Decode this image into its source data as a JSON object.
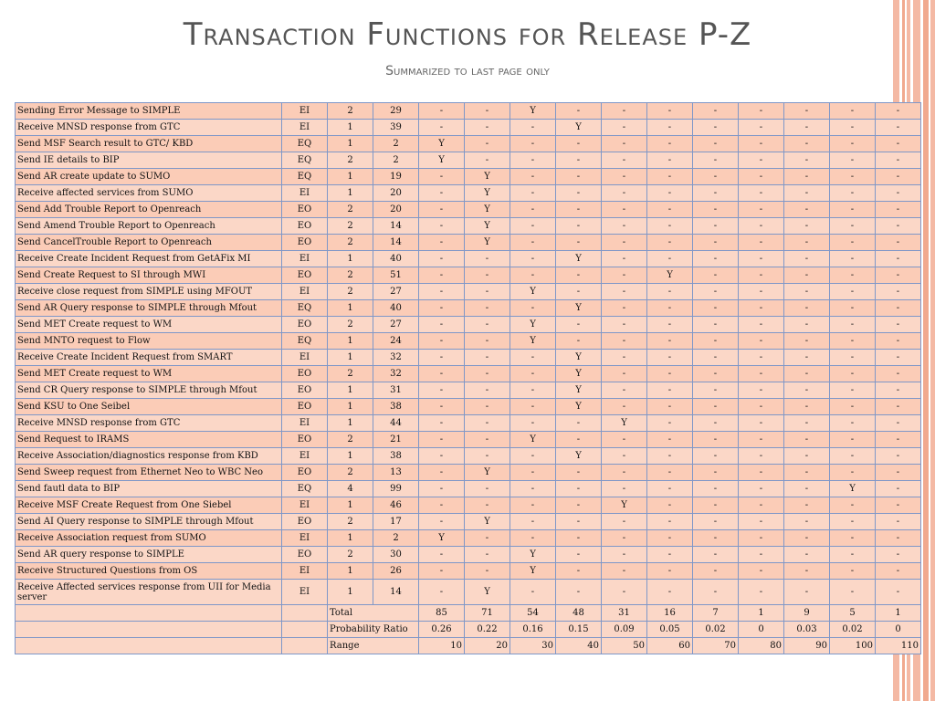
{
  "title": "Transaction Functions for Release P-Z",
  "subtitle": "Summarized to last page only",
  "rows": [
    {
      "name": "Sending Error Message to SIMPLE",
      "type": "EI",
      "ftr": "2",
      "det": "29",
      "cols": [
        "-",
        "-",
        "Y",
        "-",
        "-",
        "-",
        "-",
        "-",
        "-",
        "-",
        "-"
      ]
    },
    {
      "name": "Receive MNSD response from GTC",
      "type": "EI",
      "ftr": "1",
      "det": "39",
      "cols": [
        "-",
        "-",
        "-",
        "Y",
        "-",
        "-",
        "-",
        "-",
        "-",
        "-",
        "-"
      ]
    },
    {
      "name": "Send MSF Search result to GTC/ KBD",
      "type": "EQ",
      "ftr": "1",
      "det": "2",
      "cols": [
        "Y",
        "-",
        "-",
        "-",
        "-",
        "-",
        "-",
        "-",
        "-",
        "-",
        "-"
      ]
    },
    {
      "name": "Send IE details to BIP",
      "type": "EQ",
      "ftr": "2",
      "det": "2",
      "cols": [
        "Y",
        "-",
        "-",
        "-",
        "-",
        "-",
        "-",
        "-",
        "-",
        "-",
        "-"
      ]
    },
    {
      "name": "Send AR create update to SUMO",
      "type": "EQ",
      "ftr": "1",
      "det": "19",
      "cols": [
        "-",
        "Y",
        "-",
        "-",
        "-",
        "-",
        "-",
        "-",
        "-",
        "-",
        "-"
      ]
    },
    {
      "name": "Receive affected services from SUMO",
      "type": "EI",
      "ftr": "1",
      "det": "20",
      "cols": [
        "-",
        "Y",
        "-",
        "-",
        "-",
        "-",
        "-",
        "-",
        "-",
        "-",
        "-"
      ]
    },
    {
      "name": "Send Add Trouble Report to Openreach",
      "type": "EO",
      "ftr": "2",
      "det": "20",
      "cols": [
        "-",
        "Y",
        "-",
        "-",
        "-",
        "-",
        "-",
        "-",
        "-",
        "-",
        "-"
      ]
    },
    {
      "name": "Send Amend Trouble Report to Openreach",
      "type": "EO",
      "ftr": "2",
      "det": "14",
      "cols": [
        "-",
        "Y",
        "-",
        "-",
        "-",
        "-",
        "-",
        "-",
        "-",
        "-",
        "-"
      ]
    },
    {
      "name": "Send CancelTrouble Report to Openreach",
      "type": "EO",
      "ftr": "2",
      "det": "14",
      "cols": [
        "-",
        "Y",
        "-",
        "-",
        "-",
        "-",
        "-",
        "-",
        "-",
        "-",
        "-"
      ]
    },
    {
      "name": "Receive Create Incident Request from GetAFix MI",
      "type": "EI",
      "ftr": "1",
      "det": "40",
      "cols": [
        "-",
        "-",
        "-",
        "Y",
        "-",
        "-",
        "-",
        "-",
        "-",
        "-",
        "-"
      ]
    },
    {
      "name": "Send Create Request to SI through MWI",
      "type": "EO",
      "ftr": "2",
      "det": "51",
      "cols": [
        "-",
        "-",
        "-",
        "-",
        "-",
        "Y",
        "-",
        "-",
        "-",
        "-",
        "-"
      ]
    },
    {
      "name": "Receive close request from SIMPLE using MFOUT",
      "type": "EI",
      "ftr": "2",
      "det": "27",
      "cols": [
        "-",
        "-",
        "Y",
        "-",
        "-",
        "-",
        "-",
        "-",
        "-",
        "-",
        "-"
      ]
    },
    {
      "name": "Send AR Query response to SIMPLE through Mfout",
      "type": "EQ",
      "ftr": "1",
      "det": "40",
      "cols": [
        "-",
        "-",
        "-",
        "Y",
        "-",
        "-",
        "-",
        "-",
        "-",
        "-",
        "-"
      ]
    },
    {
      "name": "Send MET Create request to WM",
      "type": "EO",
      "ftr": "2",
      "det": "27",
      "cols": [
        "-",
        "-",
        "Y",
        "-",
        "-",
        "-",
        "-",
        "-",
        "-",
        "-",
        "-"
      ]
    },
    {
      "name": "Send MNTO request to Flow",
      "type": "EQ",
      "ftr": "1",
      "det": "24",
      "cols": [
        "-",
        "-",
        "Y",
        "-",
        "-",
        "-",
        "-",
        "-",
        "-",
        "-",
        "-"
      ]
    },
    {
      "name": "Receive Create Incident Request from SMART",
      "type": "EI",
      "ftr": "1",
      "det": "32",
      "cols": [
        "-",
        "-",
        "-",
        "Y",
        "-",
        "-",
        "-",
        "-",
        "-",
        "-",
        "-"
      ]
    },
    {
      "name": "Send MET Create request to WM",
      "type": "EO",
      "ftr": "2",
      "det": "32",
      "cols": [
        "-",
        "-",
        "-",
        "Y",
        "-",
        "-",
        "-",
        "-",
        "-",
        "-",
        "-"
      ]
    },
    {
      "name": "Send CR Query response to SIMPLE through Mfout",
      "type": "EO",
      "ftr": "1",
      "det": "31",
      "cols": [
        "-",
        "-",
        "-",
        "Y",
        "-",
        "-",
        "-",
        "-",
        "-",
        "-",
        "-"
      ]
    },
    {
      "name": "Send KSU to One Seibel",
      "type": "EO",
      "ftr": "1",
      "det": "38",
      "cols": [
        "-",
        "-",
        "-",
        "Y",
        "-",
        "-",
        "-",
        "-",
        "-",
        "-",
        "-"
      ]
    },
    {
      "name": "Receive MNSD response from GTC",
      "type": "EI",
      "ftr": "1",
      "det": "44",
      "cols": [
        "-",
        "-",
        "-",
        "-",
        "Y",
        "-",
        "-",
        "-",
        "-",
        "-",
        "-"
      ]
    },
    {
      "name": "Send Request to IRAMS",
      "type": "EO",
      "ftr": "2",
      "det": "21",
      "cols": [
        "-",
        "-",
        "Y",
        "-",
        "-",
        "-",
        "-",
        "-",
        "-",
        "-",
        "-"
      ]
    },
    {
      "name": "Receive Association/diagnostics response from  KBD",
      "type": "EI",
      "ftr": "1",
      "det": "38",
      "cols": [
        "-",
        "-",
        "-",
        "Y",
        "-",
        "-",
        "-",
        "-",
        "-",
        "-",
        "-"
      ]
    },
    {
      "name": "Send Sweep request from Ethernet Neo to WBC Neo",
      "type": "EO",
      "ftr": "2",
      "det": "13",
      "cols": [
        "-",
        "Y",
        "-",
        "-",
        "-",
        "-",
        "-",
        "-",
        "-",
        "-",
        "-"
      ]
    },
    {
      "name": "Send fautl data to BIP",
      "type": "EQ",
      "ftr": "4",
      "det": "99",
      "cols": [
        "-",
        "-",
        "-",
        "-",
        "-",
        "-",
        "-",
        "-",
        "-",
        "Y",
        "-"
      ]
    },
    {
      "name": "Receive MSF Create Request from One Siebel",
      "type": "EI",
      "ftr": "1",
      "det": "46",
      "cols": [
        "-",
        "-",
        "-",
        "-",
        "Y",
        "-",
        "-",
        "-",
        "-",
        "-",
        "-"
      ]
    },
    {
      "name": "Send AI Query response to SIMPLE through Mfout",
      "type": "EO",
      "ftr": "2",
      "det": "17",
      "cols": [
        "-",
        "Y",
        "-",
        "-",
        "-",
        "-",
        "-",
        "-",
        "-",
        "-",
        "-"
      ]
    },
    {
      "name": "Receive Association  request from SUMO",
      "type": "EI",
      "ftr": "1",
      "det": "2",
      "cols": [
        "Y",
        "-",
        "-",
        "-",
        "-",
        "-",
        "-",
        "-",
        "-",
        "-",
        "-"
      ]
    },
    {
      "name": "Send AR query response to SIMPLE",
      "type": "EO",
      "ftr": "2",
      "det": "30",
      "cols": [
        "-",
        "-",
        "Y",
        "-",
        "-",
        "-",
        "-",
        "-",
        "-",
        "-",
        "-"
      ]
    },
    {
      "name": "Receive Structured Questions from OS",
      "type": "EI",
      "ftr": "1",
      "det": "26",
      "cols": [
        "-",
        "-",
        "Y",
        "-",
        "-",
        "-",
        "-",
        "-",
        "-",
        "-",
        "-"
      ]
    },
    {
      "name": "Receive Affected services response from UII for Media server",
      "type": "EI",
      "ftr": "1",
      "det": "14",
      "cols": [
        "-",
        "Y",
        "-",
        "-",
        "-",
        "-",
        "-",
        "-",
        "-",
        "-",
        "-"
      ]
    }
  ],
  "total": {
    "label": "Total",
    "values": [
      "85",
      "71",
      "54",
      "48",
      "31",
      "16",
      "7",
      "1",
      "9",
      "5",
      "1"
    ]
  },
  "probability": {
    "label": "Probability Ratio",
    "values": [
      "0.26",
      "0.22",
      "0.16",
      "0.15",
      "0.09",
      "0.05",
      "0.02",
      "0",
      "0.03",
      "0.02",
      "0"
    ]
  },
  "range": {
    "label": "Range",
    "values": [
      "10",
      "20",
      "30",
      "40",
      "50",
      "60",
      "70",
      "80",
      "90",
      "100",
      "110"
    ]
  }
}
